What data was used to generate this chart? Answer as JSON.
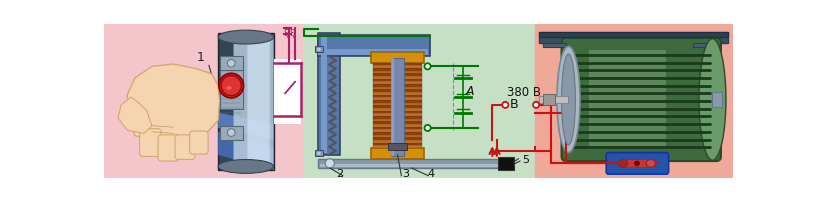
{
  "fig_width": 8.17,
  "fig_height": 2.0,
  "dpi": 100,
  "bg_left_color": "#f5c5cc",
  "bg_center_color": "#c5e0c5",
  "bg_right_color": "#f0a898",
  "label_1": "1",
  "label_2": "2",
  "label_3": "3",
  "label_4": "4",
  "label_5": "5",
  "label_A": "A",
  "label_B": "B",
  "label_V": "380 B",
  "button_color": "#cc2222",
  "hand_color": "#f5d5b0",
  "coil_copper1": "#c07030",
  "coil_copper2": "#8b4010",
  "flange_color": "#d4900a",
  "flange_edge": "#9a6600",
  "core_color": "#888899",
  "frame_blue": "#5577aa",
  "frame_dark": "#334466",
  "wire_magenta": "#aa2266",
  "wire_red": "#cc1111",
  "wire_green": "#007700",
  "spring_color": "#555555",
  "motor_green": "#3d6b3d",
  "motor_green_light": "#6a9b6a",
  "motor_green_hl": "#c0d8c0",
  "motor_base_color": "#4a5f70",
  "motor_shaft_color": "#aaaaaa",
  "term_box_blue": "#2255aa",
  "term_box_red": "#dd3333",
  "black": "#111111",
  "gray_bar": "#8899aa",
  "label_line_color": "#333333"
}
